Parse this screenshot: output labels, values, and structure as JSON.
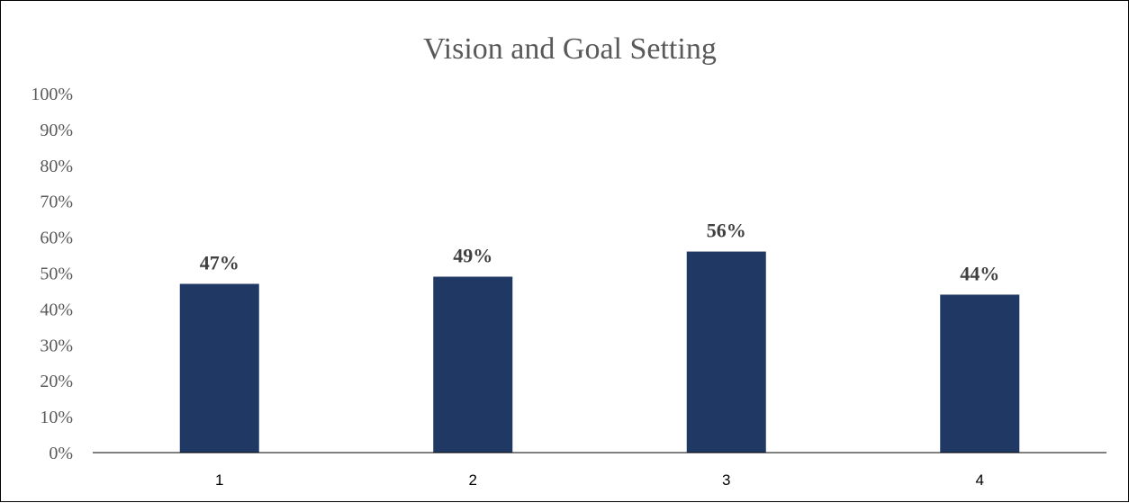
{
  "chart_data": {
    "type": "bar",
    "title": "Vision and Goal Setting",
    "categories": [
      "1",
      "2",
      "3",
      "4"
    ],
    "values": [
      47,
      49,
      56,
      44
    ],
    "data_labels": [
      "47%",
      "49%",
      "56%",
      "44%"
    ],
    "ylim": [
      0,
      100
    ],
    "yticks": [
      0,
      10,
      20,
      30,
      40,
      50,
      60,
      70,
      80,
      90,
      100
    ],
    "ytick_labels": [
      "0%",
      "10%",
      "20%",
      "30%",
      "40%",
      "50%",
      "60%",
      "70%",
      "80%",
      "90%",
      "100%"
    ],
    "xlabel": "",
    "ylabel": "",
    "grid": false,
    "legend": "none",
    "bar_color": "#203864"
  }
}
